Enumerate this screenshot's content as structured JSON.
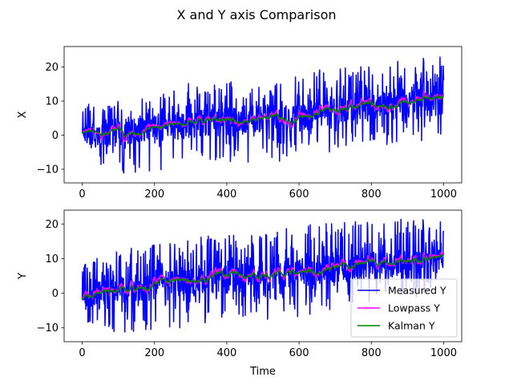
{
  "figure_title": "X and Y axis Comparison",
  "chart_data": [
    {
      "type": "line",
      "panel": "top",
      "title": "",
      "xlabel": "",
      "ylabel": "X",
      "xlim": [
        -50,
        1050
      ],
      "ylim": [
        -14,
        26
      ],
      "xticks": [
        0,
        200,
        400,
        600,
        800,
        1000
      ],
      "yticks": [
        -10,
        0,
        10,
        20
      ],
      "grid": false,
      "legend": false,
      "series_colors": {
        "measured": "#0000ff",
        "lowpass": "#ff00ff",
        "kalman": "#008000"
      },
      "trend": {
        "x": [
          0,
          100,
          200,
          300,
          400,
          500,
          600,
          700,
          800,
          900,
          1000
        ],
        "y": [
          -1,
          1,
          2,
          3,
          4,
          5,
          5,
          7,
          8,
          9,
          10
        ]
      },
      "measured_spread": {
        "x": [
          0,
          100,
          200,
          300,
          400,
          500,
          600,
          700,
          800,
          900,
          1000
        ],
        "min": [
          -7,
          -11,
          -12,
          -9,
          -8,
          -9,
          -8,
          -8,
          -3,
          -3,
          0
        ],
        "max": [
          9,
          10,
          11,
          16,
          16,
          14,
          18,
          20,
          21,
          22,
          24
        ]
      }
    },
    {
      "type": "line",
      "panel": "bottom",
      "title": "",
      "xlabel": "Time",
      "ylabel": "Y",
      "xlim": [
        -50,
        1050
      ],
      "ylim": [
        -14,
        24
      ],
      "xticks": [
        0,
        200,
        400,
        600,
        800,
        1000
      ],
      "yticks": [
        -10,
        0,
        10,
        20
      ],
      "grid": false,
      "legend": "bottom-right",
      "series": [
        {
          "name": "Measured Y",
          "color": "#0000ff"
        },
        {
          "name": "Lowpass Y",
          "color": "#ff00ff"
        },
        {
          "name": "Kalman Y",
          "color": "#008000"
        }
      ],
      "trend": {
        "x": [
          0,
          100,
          200,
          300,
          400,
          500,
          600,
          700,
          800,
          900,
          1000
        ],
        "y": [
          -2,
          1,
          2,
          3,
          4,
          4,
          6,
          7,
          8,
          9,
          10
        ]
      },
      "measured_spread": {
        "x": [
          0,
          100,
          200,
          300,
          400,
          500,
          600,
          700,
          800,
          900,
          1000
        ],
        "min": [
          -9,
          -12,
          -11,
          -10,
          -8,
          -8,
          -7,
          -5,
          -3,
          -2,
          0
        ],
        "max": [
          8,
          13,
          14,
          16,
          17,
          17,
          20,
          21,
          21,
          22,
          22
        ]
      }
    }
  ]
}
